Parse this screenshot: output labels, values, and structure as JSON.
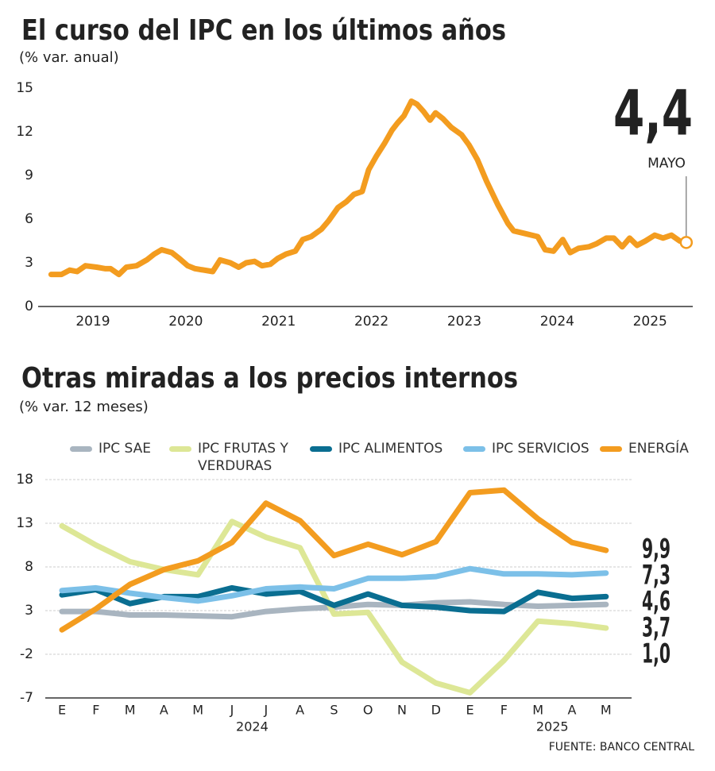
{
  "chart_data": [
    {
      "type": "line",
      "title": "El curso del IPC en los últimos años",
      "subtitle": "(% var. anual)",
      "color": "#f39c1f",
      "x": [
        2018.55,
        2018.66,
        2018.75,
        2018.83,
        2018.92,
        2019.04,
        2019.13,
        2019.19,
        2019.28,
        2019.36,
        2019.47,
        2019.58,
        2019.66,
        2019.74,
        2019.85,
        2019.93,
        2020.02,
        2020.1,
        2020.29,
        2020.37,
        2020.48,
        2020.57,
        2020.65,
        2020.74,
        2020.82,
        2020.91,
        2020.99,
        2021.08,
        2021.18,
        2021.26,
        2021.35,
        2021.46,
        2021.54,
        2021.64,
        2021.73,
        2021.81,
        2021.9,
        2021.97,
        2022.05,
        2022.14,
        2022.22,
        2022.28,
        2022.35,
        2022.43,
        2022.49,
        2022.56,
        2022.63,
        2022.69,
        2022.77,
        2022.86,
        2022.97,
        2023.05,
        2023.14,
        2023.24,
        2023.36,
        2023.47,
        2023.53,
        2023.66,
        2023.79,
        2023.87,
        2023.96,
        2024.06,
        2024.14,
        2024.23,
        2024.34,
        2024.42,
        2024.53,
        2024.61,
        2024.7,
        2024.78,
        2024.86,
        2024.95,
        2025.05,
        2025.14,
        2025.23,
        2025.32,
        2025.39
      ],
      "values": [
        2.2,
        2.2,
        2.5,
        2.4,
        2.8,
        2.7,
        2.6,
        2.6,
        2.2,
        2.7,
        2.8,
        3.2,
        3.6,
        3.9,
        3.7,
        3.3,
        2.8,
        2.6,
        2.4,
        3.2,
        3.0,
        2.7,
        3.0,
        3.1,
        2.8,
        2.9,
        3.3,
        3.6,
        3.8,
        4.6,
        4.8,
        5.3,
        5.9,
        6.8,
        7.2,
        7.7,
        7.9,
        9.4,
        10.3,
        11.2,
        12.1,
        12.6,
        13.1,
        14.1,
        13.9,
        13.4,
        12.8,
        13.3,
        12.9,
        12.3,
        11.8,
        11.1,
        10.1,
        8.6,
        7.0,
        5.7,
        5.2,
        5.0,
        4.8,
        3.9,
        3.8,
        4.6,
        3.7,
        4.0,
        4.1,
        4.3,
        4.7,
        4.7,
        4.1,
        4.7,
        4.2,
        4.5,
        4.9,
        4.7,
        4.9,
        4.5,
        4.4
      ],
      "xlim": [
        2018.41,
        2025.46
      ],
      "xticks": [
        2019,
        2020,
        2021,
        2022,
        2023,
        2024,
        2025
      ],
      "ylim": [
        0,
        15
      ],
      "yticks": [
        0,
        3,
        6,
        9,
        12,
        15
      ],
      "grid": false,
      "annotations": [
        {
          "label": "4,4",
          "text": "MAYO"
        }
      ]
    },
    {
      "type": "line",
      "title": "Otras miradas a los precios internos",
      "subtitle": "(% var. 12 meses)",
      "categories": [
        "E",
        "F",
        "M",
        "A",
        "M",
        "J",
        "J",
        "A",
        "S",
        "O",
        "N",
        "D",
        "E",
        "F",
        "M",
        "A",
        "M"
      ],
      "x_groups": [
        {
          "label": "2024",
          "size": 12
        },
        {
          "label": "2025",
          "size": 5
        }
      ],
      "series": [
        {
          "name": "IPC SAE",
          "color": "#a9b5c0",
          "end_label": "3,7",
          "values": [
            2.9,
            2.9,
            2.5,
            2.5,
            2.4,
            2.3,
            2.9,
            3.2,
            3.4,
            3.7,
            3.6,
            3.9,
            4.0,
            3.7,
            3.5,
            3.6,
            3.7
          ]
        },
        {
          "name": "IPC FRUTAS Y VERDURAS",
          "color": "#dde796",
          "label_color": "#8cc27c",
          "end_label": "1,0",
          "values": [
            12.7,
            10.5,
            8.6,
            7.7,
            7.1,
            13.2,
            11.4,
            10.2,
            2.6,
            2.8,
            -2.9,
            -5.3,
            -6.4,
            -2.7,
            1.8,
            1.5,
            1.0
          ]
        },
        {
          "name": "IPC ALIMENTOS",
          "color": "#0a6e91",
          "end_label": "4,6",
          "values": [
            4.8,
            5.4,
            3.8,
            4.6,
            4.6,
            5.6,
            4.9,
            5.2,
            3.6,
            4.9,
            3.6,
            3.4,
            3.0,
            2.9,
            5.1,
            4.4,
            4.6
          ]
        },
        {
          "name": "IPC SERVICIOS",
          "color": "#7cc0e8",
          "end_label": "7,3",
          "values": [
            5.3,
            5.6,
            5.0,
            4.5,
            4.1,
            4.7,
            5.5,
            5.7,
            5.5,
            6.7,
            6.7,
            6.9,
            7.8,
            7.2,
            7.2,
            7.1,
            7.3
          ]
        },
        {
          "name": "ENERGÍA",
          "color": "#f39c1f",
          "end_label": "9,9",
          "values": [
            0.8,
            3.2,
            6.0,
            7.7,
            8.7,
            10.8,
            15.3,
            13.3,
            9.3,
            10.6,
            9.4,
            10.9,
            16.5,
            16.8,
            13.5,
            10.8,
            9.9
          ]
        }
      ],
      "ylim": [
        -7,
        18
      ],
      "yticks": [
        -7,
        -2,
        3,
        8,
        13,
        18
      ],
      "grid": true,
      "legend": "top",
      "source": "FUENTE: BANCO CENTRAL"
    }
  ]
}
